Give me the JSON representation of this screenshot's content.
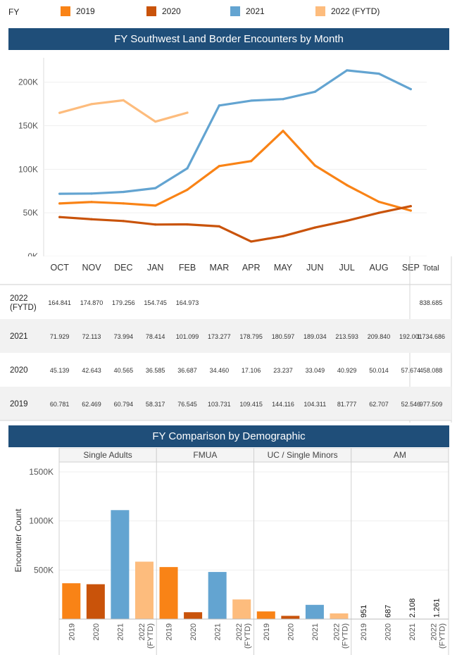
{
  "legend": {
    "title": "FY",
    "items": [
      {
        "label": "2019",
        "color": "#f98316"
      },
      {
        "label": "2020",
        "color": "#c9530a"
      },
      {
        "label": "2021",
        "color": "#63a4d1"
      },
      {
        "label": "2022 (FYTD)",
        "color": "#fdbc7d"
      }
    ]
  },
  "line_section": {
    "title": "FY Southwest Land Border Encounters by Month"
  },
  "demo_section": {
    "title": "FY Comparison by Demographic"
  },
  "table": {
    "total_label": "Total",
    "rows": [
      {
        "fy": [
          "2022",
          "(FYTD)"
        ],
        "values": [
          "164.841",
          "174.870",
          "179.256",
          "154.745",
          "164.973",
          "",
          "",
          "",
          "",
          "",
          "",
          ""
        ],
        "total": "838.685"
      },
      {
        "fy": [
          "2021"
        ],
        "values": [
          "71.929",
          "72.113",
          "73.994",
          "78.414",
          "101.099",
          "173.277",
          "178.795",
          "180.597",
          "189.034",
          "213.593",
          "209.840",
          "192.001"
        ],
        "total": "1.734.686"
      },
      {
        "fy": [
          "2020"
        ],
        "values": [
          "45.139",
          "42.643",
          "40.565",
          "36.585",
          "36.687",
          "34.460",
          "17.106",
          "23.237",
          "33.049",
          "40.929",
          "50.014",
          "57.674"
        ],
        "total": "458.088"
      },
      {
        "fy": [
          "2019"
        ],
        "values": [
          "60.781",
          "62.469",
          "60.794",
          "58.317",
          "76.545",
          "103.731",
          "109.415",
          "144.116",
          "104.311",
          "81.777",
          "62.707",
          "52.546"
        ],
        "total": "977.509"
      }
    ]
  },
  "chart_data": [
    {
      "type": "line",
      "title": "FY Southwest Land Border Encounters by Month",
      "categories": [
        "OCT",
        "NOV",
        "DEC",
        "JAN",
        "FEB",
        "MAR",
        "APR",
        "MAY",
        "JUN",
        "JUL",
        "AUG",
        "SEP"
      ],
      "ylim": [
        0,
        220000
      ],
      "yticks": [
        {
          "value": 0,
          "label": "0K"
        },
        {
          "value": 50000,
          "label": "50K"
        },
        {
          "value": 100000,
          "label": "100K"
        },
        {
          "value": 150000,
          "label": "150K"
        },
        {
          "value": 200000,
          "label": "200K"
        }
      ],
      "grid": true,
      "series": [
        {
          "name": "2019",
          "color": "#f98316",
          "values": [
            60781,
            62469,
            60794,
            58317,
            76545,
            103731,
            109415,
            144116,
            104311,
            81777,
            62707,
            52546
          ]
        },
        {
          "name": "2020",
          "color": "#c9530a",
          "values": [
            45139,
            42643,
            40565,
            36585,
            36687,
            34460,
            17106,
            23237,
            33049,
            40929,
            50014,
            57674
          ]
        },
        {
          "name": "2021",
          "color": "#63a4d1",
          "values": [
            71929,
            72113,
            73994,
            78414,
            101099,
            173277,
            178795,
            180597,
            189034,
            213593,
            209840,
            192001
          ]
        },
        {
          "name": "2022 (FYTD)",
          "color": "#fdbc7d",
          "values": [
            164841,
            174870,
            179256,
            154745,
            164973,
            null,
            null,
            null,
            null,
            null,
            null,
            null
          ]
        }
      ]
    },
    {
      "type": "bar",
      "title": "FY Comparison by Demographic",
      "ylabel": "Encounter Count",
      "ylim": [
        0,
        1600000
      ],
      "yticks": [
        {
          "value": 500000,
          "label": "500K"
        },
        {
          "value": 1000000,
          "label": "1000K"
        },
        {
          "value": 1500000,
          "label": "1500K"
        }
      ],
      "panels": [
        {
          "name": "Single Adults",
          "values": [
            365000,
            355000,
            1110000,
            585000
          ],
          "labels": [
            "",
            "",
            "",
            ""
          ]
        },
        {
          "name": "FMUA",
          "values": [
            530000,
            70000,
            480000,
            200000
          ],
          "labels": [
            "",
            "",
            "",
            ""
          ]
        },
        {
          "name": "UC / Single Minors",
          "values": [
            78000,
            33000,
            145000,
            58000
          ],
          "labels": [
            "",
            "",
            "",
            ""
          ]
        },
        {
          "name": "AM",
          "values": [
            951,
            687,
            2108,
            1261
          ],
          "labels": [
            "951",
            "687",
            "2.108",
            "1.261"
          ]
        }
      ],
      "categories": [
        [
          "2019"
        ],
        [
          "2020"
        ],
        [
          "2021"
        ],
        [
          "2022",
          "(FYTD)"
        ]
      ],
      "colors": [
        "#f98316",
        "#c9530a",
        "#63a4d1",
        "#fdbc7d"
      ]
    }
  ]
}
